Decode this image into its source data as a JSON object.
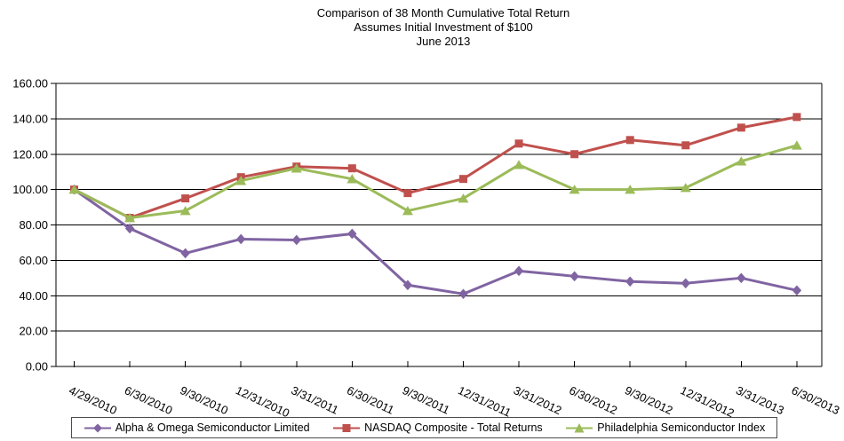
{
  "title": {
    "line1": "Comparison of 38 Month Cumulative Total Return",
    "line2": "Assumes Initial Investment of $100",
    "line3": "June 2013"
  },
  "chart_data": {
    "type": "line",
    "categories": [
      "4/29/2010",
      "6/30/2010",
      "9/30/2010",
      "12/31/2010",
      "3/31/2011",
      "6/30/2011",
      "9/30/2011",
      "12/31/2011",
      "3/31/2012",
      "6/30/2012",
      "9/30/2012",
      "12/31/2012",
      "3/31/2013",
      "6/30/2013"
    ],
    "series": [
      {
        "name": "Alpha & Omega Semiconductor Limited",
        "marker": "diamond",
        "color": "#8064A2",
        "values": [
          100,
          78,
          64,
          72,
          71.5,
          75,
          46,
          41,
          54,
          51,
          48,
          47,
          50,
          43
        ]
      },
      {
        "name": "NASDAQ Composite - Total Returns",
        "marker": "square",
        "color": "#C0504D",
        "values": [
          100,
          84,
          95,
          107,
          113,
          112,
          98,
          106,
          126,
          120,
          128,
          125,
          135,
          141
        ]
      },
      {
        "name": "Philadelphia Semiconductor Index",
        "marker": "triangle",
        "color": "#9BBB59",
        "values": [
          100,
          84,
          88,
          105,
          112,
          106,
          88,
          95,
          114,
          100,
          100,
          101,
          116,
          125
        ]
      }
    ],
    "ylabel": "",
    "xlabel": "",
    "ylim": [
      0,
      160
    ],
    "y_tick_step": 20,
    "y_tick_labels": [
      "0.00",
      "20.00",
      "40.00",
      "60.00",
      "80.00",
      "100.00",
      "120.00",
      "140.00",
      "160.00"
    ],
    "grid": "horizontal",
    "legend_position": "bottom",
    "axis_color": "#000000",
    "background_color": "#FFFFFF"
  }
}
